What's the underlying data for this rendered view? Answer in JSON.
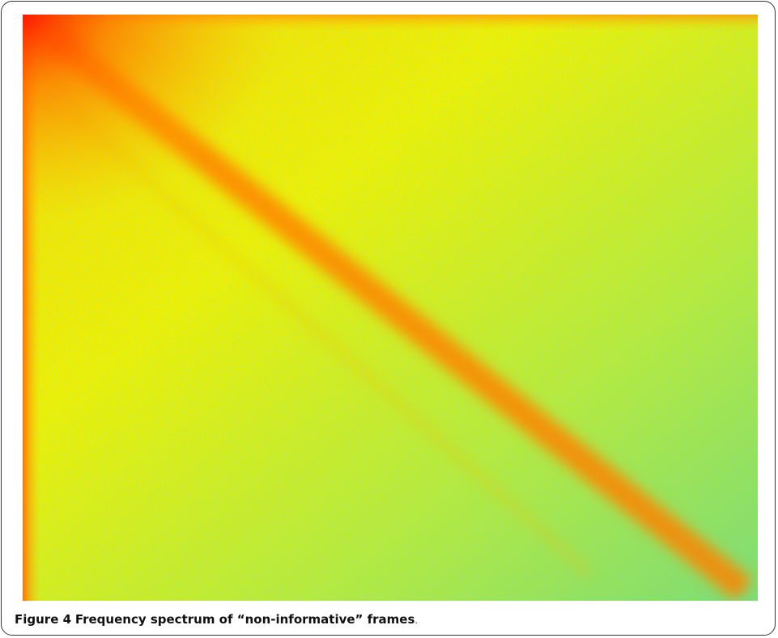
{
  "figure": {
    "label": "Figure 4",
    "caption": "Frequency spectrum of “non-informative” frames",
    "caption_end": "."
  }
}
